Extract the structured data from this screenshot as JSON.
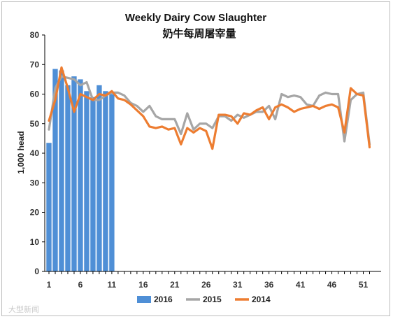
{
  "chart_data": {
    "type": "bar+line",
    "title": "Weekly Dairy Cow Slaughter",
    "subtitle": "奶牛每周屠宰量",
    "ylabel": "1,000 head",
    "xlabel": "",
    "ylim": [
      0,
      80
    ],
    "yticks": [
      "0",
      "10",
      "20",
      "30",
      "40",
      "50",
      "60",
      "70",
      "80"
    ],
    "xticks": [
      "1",
      "6",
      "11",
      "16",
      "21",
      "26",
      "31",
      "36",
      "41",
      "46",
      "51"
    ],
    "xtick_weeks": [
      1,
      6,
      11,
      16,
      21,
      26,
      31,
      36,
      41,
      46,
      51
    ],
    "legend_position": "bottom",
    "grid": false,
    "series": [
      {
        "name": "2016",
        "kind": "bar",
        "color": "#4f8fd6",
        "x": [
          1,
          2,
          3,
          4,
          5,
          6,
          7,
          8,
          9,
          10,
          11
        ],
        "values": [
          43.5,
          68.5,
          68,
          63,
          66,
          65,
          61,
          59,
          63,
          61,
          60
        ]
      },
      {
        "name": "2015",
        "kind": "line",
        "color": "#a6a6a6",
        "x": [
          1,
          2,
          3,
          4,
          5,
          6,
          7,
          8,
          9,
          10,
          11,
          12,
          13,
          14,
          15,
          16,
          17,
          18,
          19,
          20,
          21,
          22,
          23,
          24,
          25,
          26,
          27,
          28,
          29,
          30,
          31,
          32,
          33,
          34,
          35,
          36,
          37,
          38,
          39,
          40,
          41,
          42,
          43,
          44,
          45,
          46,
          47,
          48,
          49,
          50,
          51,
          52
        ],
        "values": [
          48,
          62,
          66,
          65.5,
          65,
          63,
          64,
          58,
          58,
          59.5,
          60.5,
          60.5,
          59.5,
          57,
          56,
          54,
          56,
          52.5,
          51.5,
          51.5,
          51.5,
          46.5,
          53.5,
          48,
          50,
          50,
          48.5,
          52.5,
          52.5,
          51,
          53,
          52,
          53,
          54,
          54,
          56,
          51.5,
          60,
          59,
          59.5,
          59,
          56.5,
          56,
          59.5,
          60.5,
          60,
          60,
          44,
          58,
          60,
          60.5,
          43
        ]
      },
      {
        "name": "2014",
        "kind": "line",
        "color": "#ed7d31",
        "x": [
          1,
          2,
          3,
          4,
          5,
          6,
          7,
          8,
          9,
          10,
          11,
          12,
          13,
          14,
          15,
          16,
          17,
          18,
          19,
          20,
          21,
          22,
          23,
          24,
          25,
          26,
          27,
          28,
          29,
          30,
          31,
          32,
          33,
          34,
          35,
          36,
          37,
          38,
          39,
          40,
          41,
          42,
          43,
          44,
          45,
          46,
          47,
          48,
          49,
          50,
          51,
          52
        ],
        "values": [
          51,
          58,
          69,
          62,
          54,
          60,
          59,
          58,
          60,
          59.5,
          61,
          58.5,
          58,
          56.5,
          54.5,
          52.5,
          49,
          48.5,
          49,
          48,
          48.5,
          43,
          48.5,
          47,
          48.5,
          47.5,
          41.5,
          53,
          53,
          52.5,
          50,
          53.5,
          53,
          54.5,
          55.5,
          51.5,
          55.5,
          56.5,
          55.5,
          54,
          55,
          55.5,
          56,
          55,
          56,
          56.5,
          55.5,
          47,
          62,
          60,
          59.5,
          42
        ]
      }
    ]
  },
  "watermark": "大型新闻"
}
